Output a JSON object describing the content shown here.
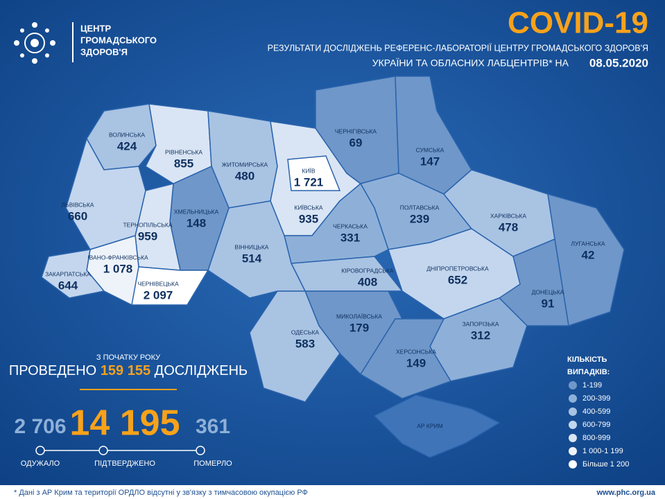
{
  "header": {
    "logo_lines": [
      "ЦЕНТР",
      "ГРОМАДСЬКОГО",
      "ЗДОРОВ'Я"
    ],
    "title": "COVID-19",
    "subtitle_line1": "РЕЗУЛЬТАТИ ДОСЛІДЖЕНЬ РЕФЕРЕНС-ЛАБОРАТОРІЇ ЦЕНТРУ ГРОМАДСЬКОГО ЗДОРОВ'Я",
    "subtitle_line2": "УКРАЇНИ ТА ОБЛАСНИХ ЛАБЦЕНТРІВ* НА",
    "date": "08.05.2020"
  },
  "regions": [
    {
      "name": "ВОЛИНСЬКА",
      "cases": "424",
      "color": "#a9c3e3"
    },
    {
      "name": "РІВНЕНСЬКА",
      "cases": "855",
      "color": "#d9e5f4"
    },
    {
      "name": "ЖИТОМИРСЬКА",
      "cases": "480",
      "color": "#a9c3e3"
    },
    {
      "name": "КИЇВСЬКА",
      "cases": "935",
      "color": "#d9e5f4"
    },
    {
      "name": "ЧЕРНІГІВСЬКА",
      "cases": "69",
      "color": "#6f97c9"
    },
    {
      "name": "СУМСЬКА",
      "cases": "147",
      "color": "#6f97c9"
    },
    {
      "name": "ПОЛТАВСЬКА",
      "cases": "239",
      "color": "#8eb0d8"
    },
    {
      "name": "ХАРКІВСЬКА",
      "cases": "478",
      "color": "#a9c3e3"
    },
    {
      "name": "ЛУГАНСЬКА",
      "cases": "42",
      "color": "#6f97c9"
    },
    {
      "name": "ДОНЕЦЬКА",
      "cases": "91",
      "color": "#6f97c9"
    },
    {
      "name": "ДНІПРОПЕТРОВСЬКА",
      "cases": "652",
      "color": "#c3d6ee"
    },
    {
      "name": "ЗАПОРІЗЬКА",
      "cases": "312",
      "color": "#8eb0d8"
    },
    {
      "name": "ХЕРСОНСЬКА",
      "cases": "149",
      "color": "#6f97c9"
    },
    {
      "name": "МИКОЛАЇВСЬКА",
      "cases": "179",
      "color": "#6f97c9"
    },
    {
      "name": "ОДЕСЬКА",
      "cases": "583",
      "color": "#a9c3e3"
    },
    {
      "name": "КІРОВОГРАДСЬКА",
      "cases": "408",
      "color": "#a9c3e3"
    },
    {
      "name": "ЧЕРКАСЬКА",
      "cases": "331",
      "color": "#8eb0d8"
    },
    {
      "name": "ВІННИЦЬКА",
      "cases": "514",
      "color": "#a9c3e3"
    },
    {
      "name": "ХМЕЛЬНИЦЬКА",
      "cases": "148",
      "color": "#6f97c9"
    },
    {
      "name": "ТЕРНОПІЛЬСЬКА",
      "cases": "959",
      "color": "#d9e5f4"
    },
    {
      "name": "ЛЬВІВСЬКА",
      "cases": "660",
      "color": "#c3d6ee"
    },
    {
      "name": "ІВАНО-ФРАНКІВСЬКА",
      "cases": "1 078",
      "color": "#eef3fa"
    },
    {
      "name": "ЧЕРНІВЕЦЬКА",
      "cases": "2 097",
      "color": "#ffffff"
    },
    {
      "name": "ЗАКАРПАТСЬКА",
      "cases": "644",
      "color": "#c3d6ee"
    },
    {
      "name": "АР КРИМ",
      "color": "#3f74b8"
    },
    {
      "name": "КИЇВ",
      "cases": "1 721",
      "color": "#ffffff"
    }
  ],
  "stats": {
    "since": "З ПОЧАТКУ РОКУ",
    "tests_prefix": "ПРОВЕДЕНО",
    "tests": "159 155",
    "tests_suffix": "ДОСЛІДЖЕНЬ",
    "recovered": "2 706",
    "confirmed": "14 195",
    "deaths": "361",
    "recovered_label": "ОДУЖАЛО",
    "confirmed_label": "ПІДТВЕРДЖЕНО",
    "deaths_label": "ПОМЕРЛО"
  },
  "legend": {
    "title_lines": [
      "КІЛЬКІСТЬ",
      "ВИПАДКІВ:"
    ],
    "items": [
      {
        "label": "1-199",
        "color": "#6f97c9"
      },
      {
        "label": "200-399",
        "color": "#8eb0d8"
      },
      {
        "label": "400-599",
        "color": "#a9c3e3"
      },
      {
        "label": "600-799",
        "color": "#c3d6ee"
      },
      {
        "label": "800-999",
        "color": "#d9e5f4"
      },
      {
        "label": "1 000-1 199",
        "color": "#eef3fa"
      },
      {
        "label": "Більше 1 200",
        "color": "#ffffff"
      }
    ]
  },
  "footer": {
    "note": "* Дані з АР Крим та території ОРДЛО відсутні у зв'язку з тимчасовою окупацією РФ",
    "url": "www.phc.org.ua"
  }
}
